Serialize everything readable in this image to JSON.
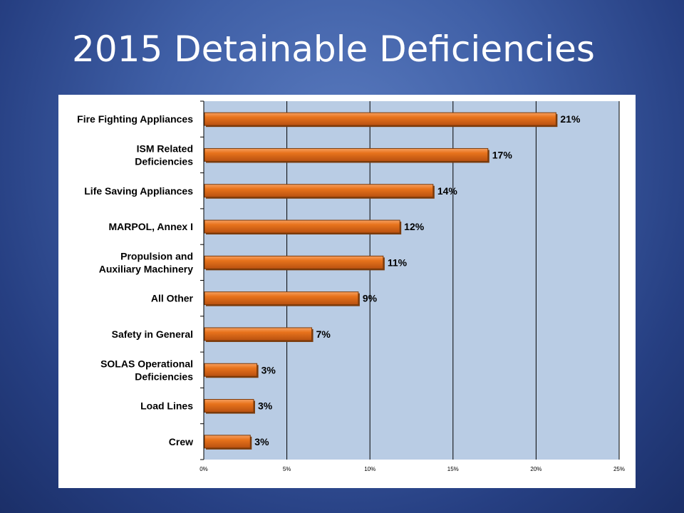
{
  "slide": {
    "title": "2015 Detainable Deficiencies"
  },
  "colors": {
    "plot_background": "#b9cce4",
    "bar_fill": "#e8731c",
    "bar_edge": "#7a3a0a",
    "gridline": "#000000"
  },
  "chart_data": {
    "type": "bar",
    "orientation": "horizontal",
    "title": "",
    "xlabel": "",
    "ylabel": "",
    "categories": [
      [
        "Fire Fighting Appliances"
      ],
      [
        "ISM Related",
        "Deficiencies"
      ],
      [
        "Life Saving Appliances"
      ],
      [
        "MARPOL, Annex I"
      ],
      [
        "Propulsion and",
        "Auxiliary Machinery"
      ],
      [
        "All Other"
      ],
      [
        "Safety in General"
      ],
      [
        "SOLAS Operational",
        "Deficiencies"
      ],
      [
        "Load Lines"
      ],
      [
        "Crew"
      ]
    ],
    "values": [
      21.2,
      17.1,
      13.8,
      11.8,
      10.8,
      9.3,
      6.5,
      3.2,
      3.0,
      2.8
    ],
    "value_labels": [
      "21%",
      "17%",
      "14%",
      "12%",
      "11%",
      "9%",
      "7%",
      "3%",
      "3%",
      "3%"
    ],
    "xlim": [
      0,
      25
    ],
    "xticks": [
      0,
      5,
      10,
      15,
      20,
      25
    ],
    "xtick_labels": [
      "0%",
      "5%",
      "10%",
      "15%",
      "20%",
      "25%"
    ],
    "grid": "vertical",
    "legend": "none"
  }
}
